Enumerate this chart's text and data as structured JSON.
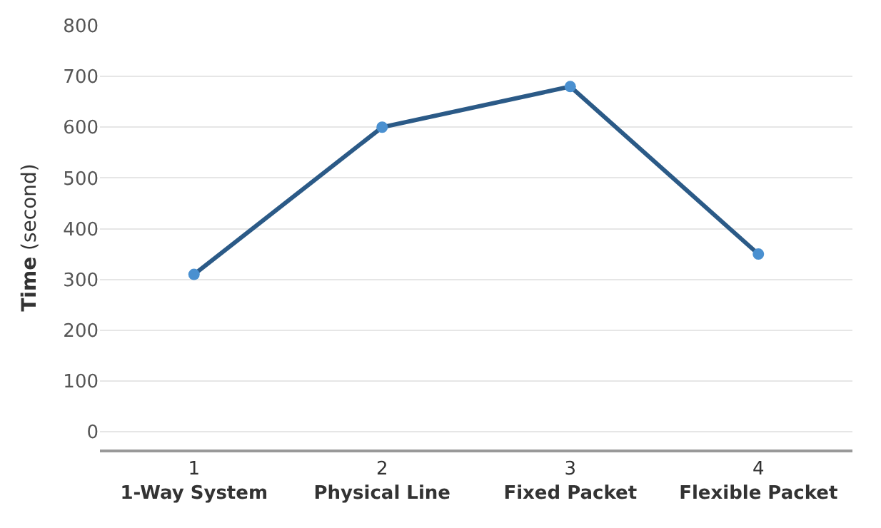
{
  "chart_data": {
    "type": "line",
    "ylabel": "Time (second)",
    "categories": [
      "1\n1-Way System",
      "2\nPhysical Line",
      "3\nFixed Packet",
      "4\nFlexible Packet"
    ],
    "series": [
      {
        "color": "#2b5a87",
        "values": [
          310,
          600,
          680,
          350
        ]
      }
    ],
    "ylim": [
      -35,
      800
    ],
    "yticks": [
      0,
      100,
      200,
      300,
      400,
      500,
      600,
      700,
      800
    ],
    "grid": "y",
    "marker": "circle",
    "line_style": "solid"
  }
}
